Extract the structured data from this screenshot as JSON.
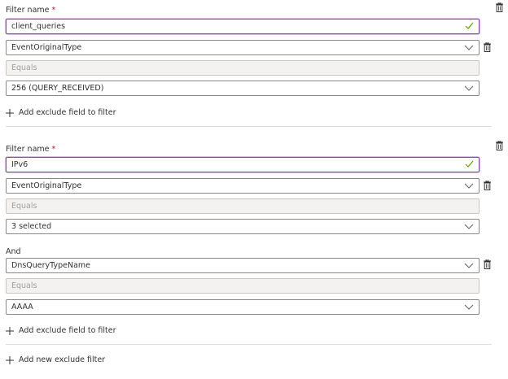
{
  "filters": [
    {
      "name_label": "Filter name",
      "required_mark": "*",
      "name_value": "client_queries",
      "conditions": [
        {
          "field": "EventOriginalType",
          "operator": "Equals",
          "value": "256 (QUERY_RECEIVED)"
        }
      ],
      "add_field_label": "Add exclude field to filter"
    },
    {
      "name_label": "Filter name",
      "required_mark": "*",
      "name_value": "IPv6",
      "conditions": [
        {
          "field": "EventOriginalType",
          "operator": "Equals",
          "value": "3 selected"
        },
        {
          "conjunction": "And",
          "field": "DnsQueryTypeName",
          "operator": "Equals",
          "value": "AAAA"
        }
      ],
      "add_field_label": "Add exclude field to filter"
    }
  ],
  "add_new_filter_label": "Add new exclude filter",
  "colors": {
    "focus_border": "#8e44ad",
    "valid_check": "#57a300",
    "required": "#a4262c"
  },
  "icons": {
    "delete": "trash-icon",
    "dropdown": "chevron-down-icon",
    "valid": "checkmark-icon",
    "add": "plus-icon"
  }
}
